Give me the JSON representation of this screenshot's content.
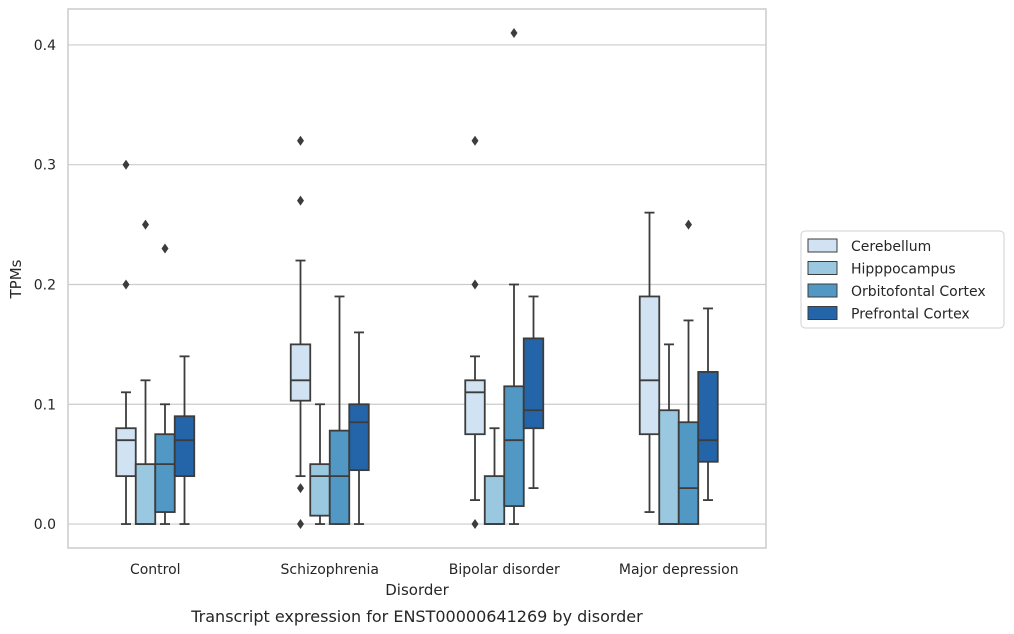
{
  "chart_data": {
    "type": "box",
    "caption": "Transcript expression for ENST00000641269 by disorder",
    "xlabel": "Disorder",
    "ylabel": "TPMs",
    "ylim": [
      -0.02,
      0.43
    ],
    "yticks": [
      "0.0",
      "0.1",
      "0.2",
      "0.3",
      "0.4"
    ],
    "grid": "horizontal",
    "legend_position": "right",
    "categories": [
      "Control",
      "Schizophrenia",
      "Bipolar disorder",
      "Major depression"
    ],
    "series": [
      {
        "name": "Cerebellum",
        "color": "#d1e2f2",
        "boxes": [
          {
            "whisker_low": 0.0,
            "q1": 0.04,
            "median": 0.07,
            "q3": 0.08,
            "whisker_high": 0.11,
            "outliers": [
              0.2,
              0.3
            ]
          },
          {
            "whisker_low": 0.04,
            "q1": 0.103,
            "median": 0.12,
            "q3": 0.15,
            "whisker_high": 0.22,
            "outliers": [
              0.0,
              0.03,
              0.27,
              0.32
            ]
          },
          {
            "whisker_low": 0.02,
            "q1": 0.075,
            "median": 0.11,
            "q3": 0.12,
            "whisker_high": 0.14,
            "outliers": [
              0.0,
              0.2,
              0.32
            ]
          },
          {
            "whisker_low": 0.01,
            "q1": 0.075,
            "median": 0.12,
            "q3": 0.19,
            "whisker_high": 0.26,
            "outliers": []
          }
        ]
      },
      {
        "name": "Hipppocampus",
        "color": "#9ac8e0",
        "boxes": [
          {
            "whisker_low": 0.0,
            "q1": 0.0,
            "median": 0.0,
            "q3": 0.05,
            "whisker_high": 0.12,
            "outliers": [
              0.25
            ]
          },
          {
            "whisker_low": 0.0,
            "q1": 0.007,
            "median": 0.04,
            "q3": 0.05,
            "whisker_high": 0.1,
            "outliers": []
          },
          {
            "whisker_low": 0.0,
            "q1": 0.0,
            "median": 0.0,
            "q3": 0.04,
            "whisker_high": 0.08,
            "outliers": []
          },
          {
            "whisker_low": 0.0,
            "q1": 0.0,
            "median": 0.0,
            "q3": 0.095,
            "whisker_high": 0.15,
            "outliers": []
          }
        ]
      },
      {
        "name": "Orbitofontal Cortex",
        "color": "#5198c5",
        "boxes": [
          {
            "whisker_low": 0.0,
            "q1": 0.01,
            "median": 0.05,
            "q3": 0.075,
            "whisker_high": 0.1,
            "outliers": [
              0.23
            ]
          },
          {
            "whisker_low": 0.0,
            "q1": 0.0,
            "median": 0.04,
            "q3": 0.078,
            "whisker_high": 0.19,
            "outliers": []
          },
          {
            "whisker_low": 0.0,
            "q1": 0.015,
            "median": 0.07,
            "q3": 0.115,
            "whisker_high": 0.2,
            "outliers": [
              0.41
            ]
          },
          {
            "whisker_low": 0.0,
            "q1": 0.0,
            "median": 0.03,
            "q3": 0.085,
            "whisker_high": 0.17,
            "outliers": [
              0.25
            ]
          }
        ]
      },
      {
        "name": "Prefrontal Cortex",
        "color": "#2464a8",
        "boxes": [
          {
            "whisker_low": 0.0,
            "q1": 0.04,
            "median": 0.07,
            "q3": 0.09,
            "whisker_high": 0.14,
            "outliers": []
          },
          {
            "whisker_low": 0.0,
            "q1": 0.045,
            "median": 0.085,
            "q3": 0.1,
            "whisker_high": 0.16,
            "outliers": []
          },
          {
            "whisker_low": 0.03,
            "q1": 0.08,
            "median": 0.095,
            "q3": 0.155,
            "whisker_high": 0.19,
            "outliers": []
          },
          {
            "whisker_low": 0.02,
            "q1": 0.052,
            "median": 0.07,
            "q3": 0.127,
            "whisker_high": 0.18,
            "outliers": []
          }
        ]
      }
    ]
  },
  "colors": {
    "grid": "#cccccc",
    "frame": "#cccccc",
    "line": "#3c3c3c",
    "text": "#262626"
  }
}
